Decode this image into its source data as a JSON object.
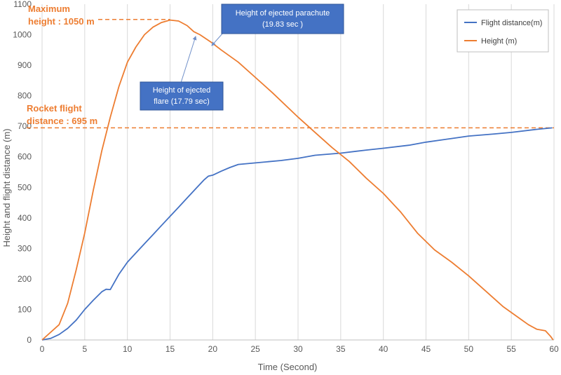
{
  "chart_data": {
    "type": "line",
    "title": "",
    "xlabel": "Time (Second)",
    "ylabel": "Height and flight distance (m)",
    "xlim": [
      0,
      60
    ],
    "ylim": [
      0,
      1100
    ],
    "x_ticks": [
      0,
      5,
      10,
      15,
      20,
      25,
      30,
      35,
      40,
      45,
      50,
      55,
      60
    ],
    "y_ticks": [
      0,
      100,
      200,
      300,
      400,
      500,
      600,
      700,
      800,
      900,
      1000,
      1100
    ],
    "grid": "vertical",
    "legend_position": "top-right",
    "series": [
      {
        "name": "Flight distance(m)",
        "color": "#4472C4",
        "x": [
          0,
          1,
          2,
          3,
          4,
          5,
          6,
          7,
          7.5,
          8,
          9,
          10,
          11,
          12,
          13,
          14,
          15,
          16,
          17,
          18,
          19,
          19.5,
          20,
          21,
          22,
          23,
          25,
          28,
          30,
          32,
          35,
          38,
          40,
          43,
          45,
          48,
          50,
          53,
          55,
          58,
          59.8
        ],
        "y": [
          0,
          5,
          18,
          38,
          65,
          100,
          130,
          158,
          166,
          165,
          215,
          255,
          285,
          315,
          345,
          375,
          405,
          435,
          465,
          495,
          525,
          537,
          540,
          553,
          565,
          575,
          580,
          588,
          595,
          605,
          612,
          622,
          628,
          638,
          648,
          660,
          668,
          675,
          680,
          690,
          695
        ]
      },
      {
        "name": "Height (m)",
        "color": "#ED7D31",
        "x": [
          0,
          2,
          3,
          4,
          5,
          6,
          7,
          8,
          9,
          10,
          11,
          12,
          13,
          14,
          15,
          16,
          17,
          17.79,
          18.5,
          19.83,
          21,
          23,
          25,
          27,
          30,
          32,
          34,
          36,
          38,
          40,
          42,
          44,
          46,
          48,
          50,
          52,
          54,
          56,
          57,
          58,
          59,
          59.6,
          59.9
        ],
        "y": [
          0,
          50,
          120,
          230,
          350,
          490,
          620,
          730,
          830,
          910,
          960,
          1000,
          1025,
          1040,
          1048,
          1045,
          1030,
          1010,
          1000,
          975,
          950,
          910,
          860,
          810,
          730,
          680,
          630,
          585,
          530,
          480,
          420,
          350,
          295,
          255,
          210,
          160,
          110,
          70,
          50,
          35,
          30,
          12,
          0
        ]
      }
    ],
    "legend": {
      "series_1": "Flight distance(m)",
      "series_2": "Height (m)"
    },
    "annotations": {
      "max_height_line1": "Maximum",
      "max_height_line2": "height : 1050 m",
      "max_height_value": 1050,
      "flight_distance_line1": "Rocket  flight",
      "flight_distance_line2": "distance : 695 m",
      "flight_distance_value": 695,
      "parachute_line1": "Height of ejected  parachute",
      "parachute_line2": "(19.83 sec )",
      "parachute_time": 19.83,
      "flare_line1": "Height of ejected",
      "flare_line2": "flare (17.79 sec)",
      "flare_time": 17.79
    },
    "colors": {
      "flight_distance": "#4472C4",
      "height": "#ED7D31",
      "callout_fill": "#4472C4",
      "grid": "#D9D9D9"
    }
  }
}
